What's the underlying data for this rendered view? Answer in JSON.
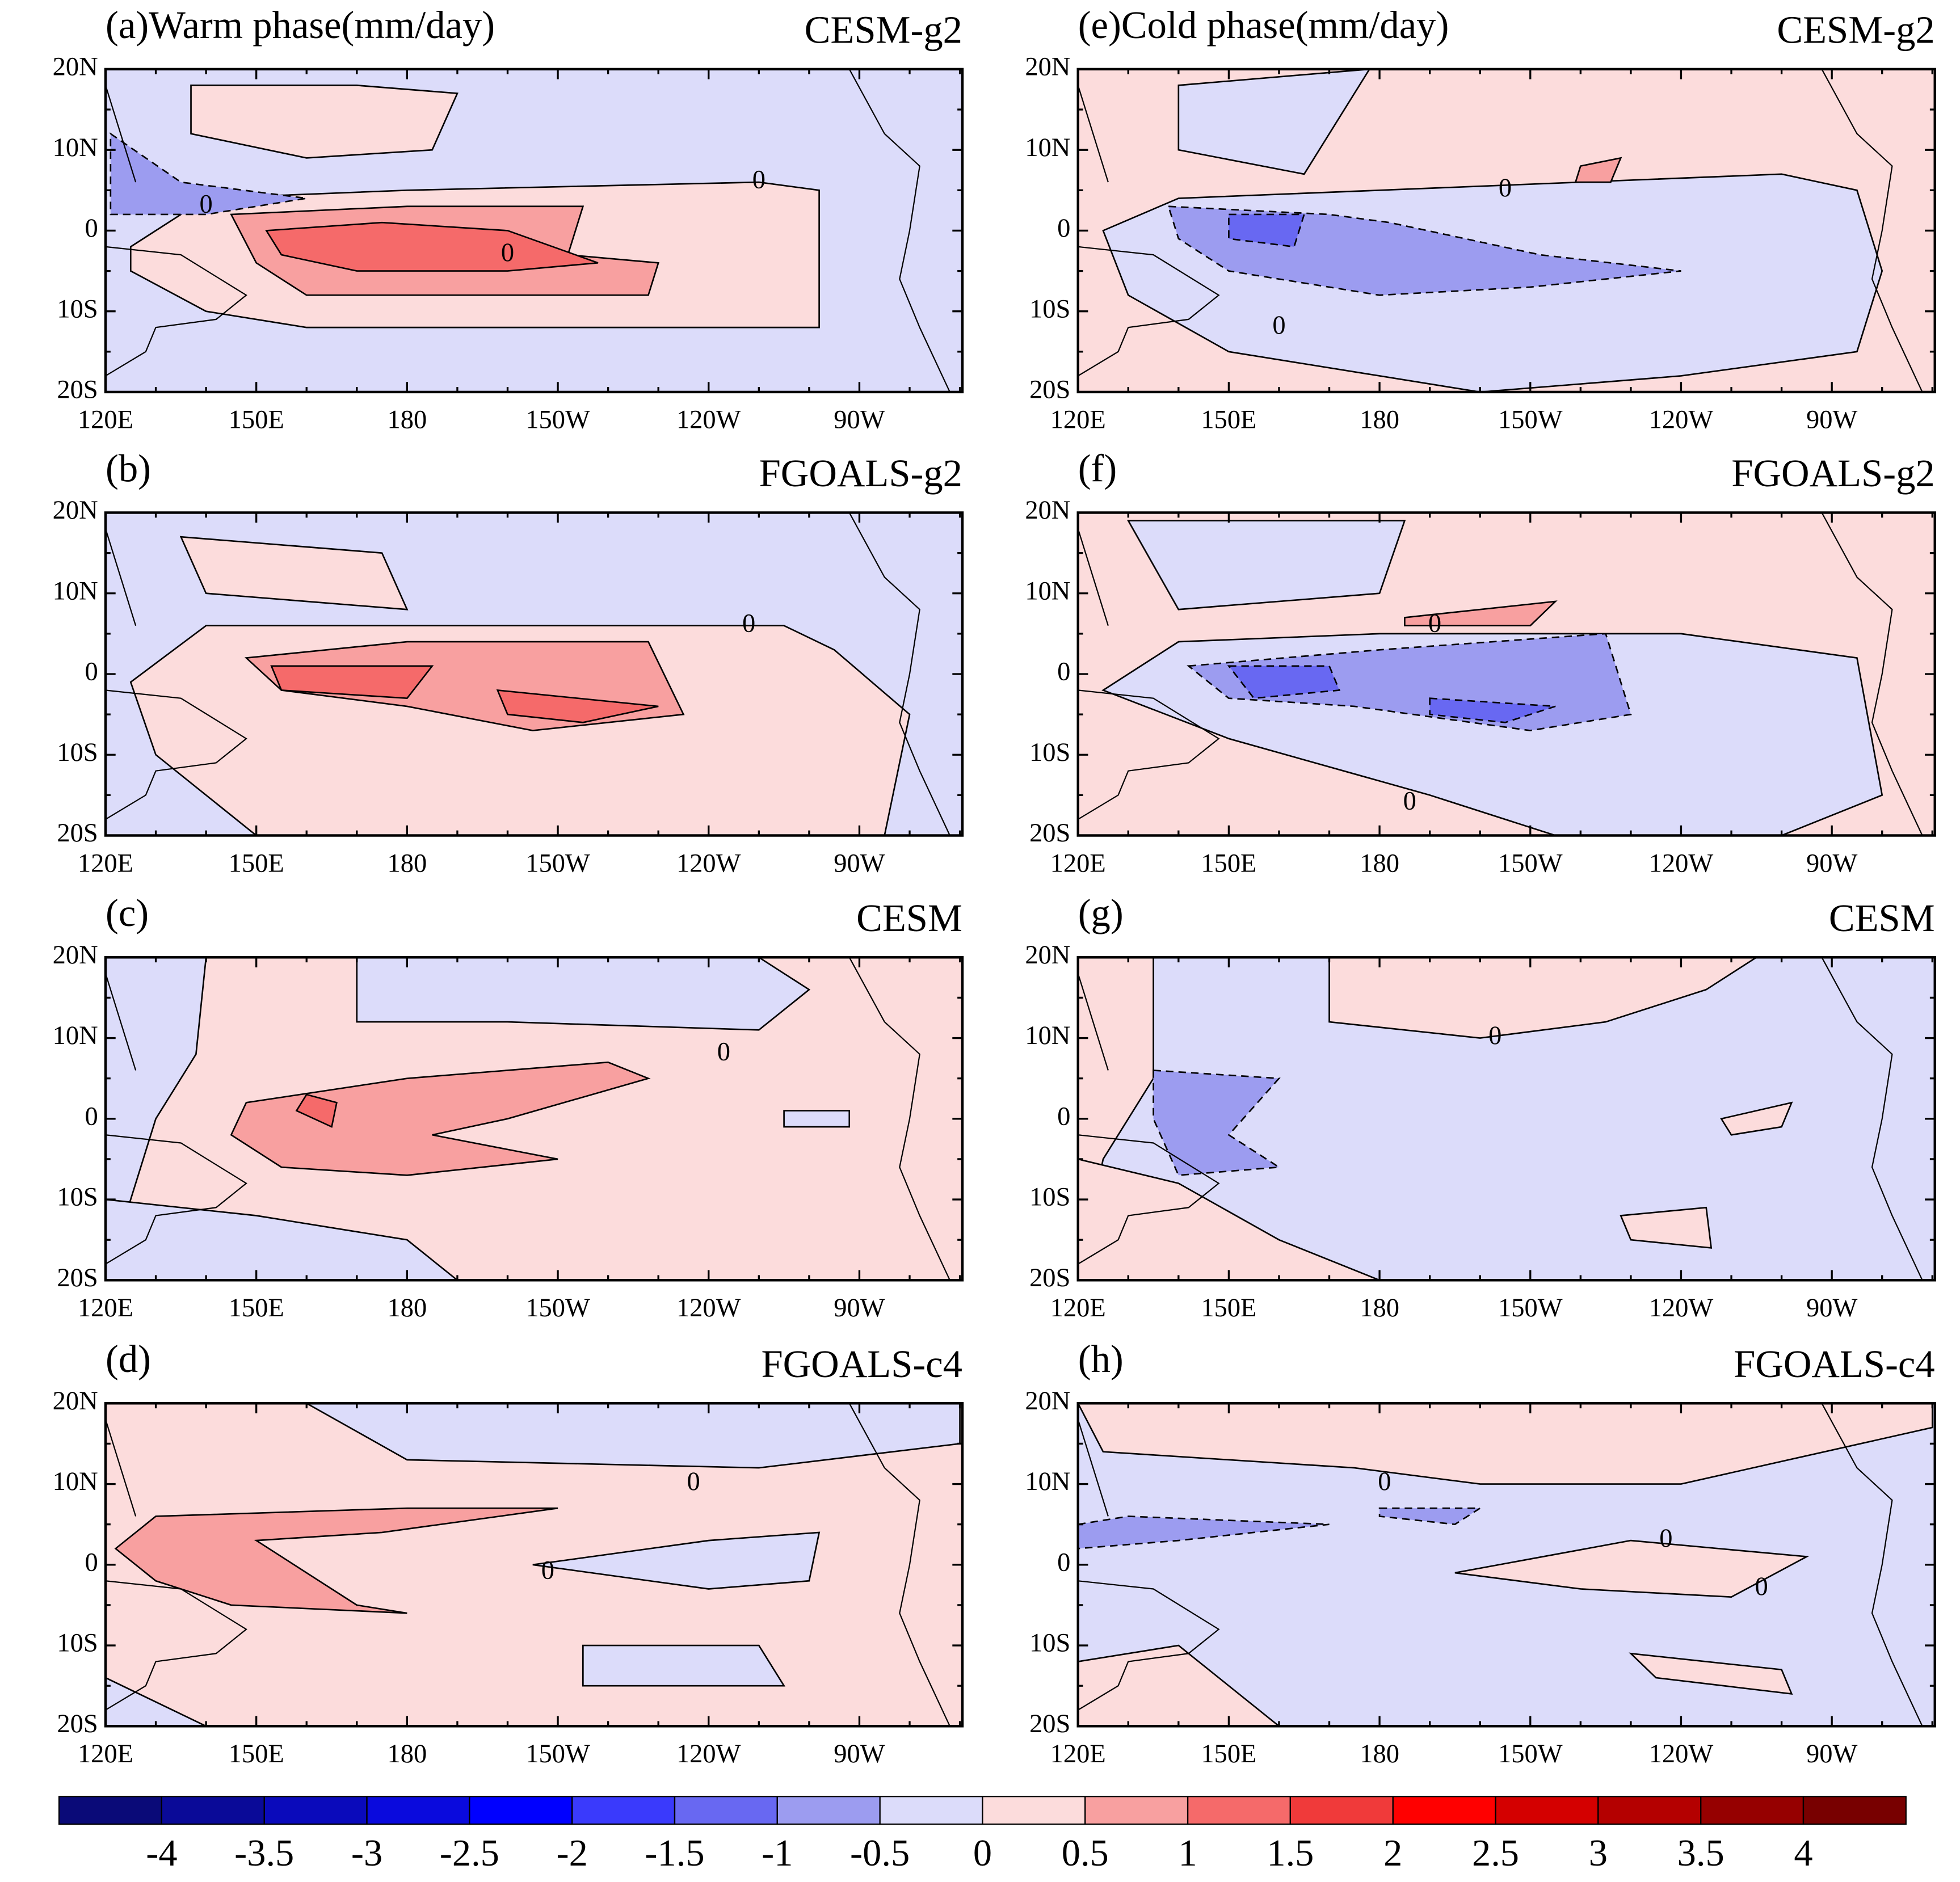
{
  "panels": [
    {
      "label": "(a)Warm phase(mm/day)",
      "model": "CESM-g2",
      "contour_labels": [
        "0",
        "0",
        "0"
      ]
    },
    {
      "label": "(b)",
      "model": "FGOALS-g2",
      "contour_labels": [
        "0"
      ]
    },
    {
      "label": "(c)",
      "model": "CESM",
      "contour_labels": [
        "0"
      ]
    },
    {
      "label": "(d)",
      "model": "FGOALS-c4",
      "contour_labels": [
        "0",
        "0"
      ]
    },
    {
      "label": "(e)Cold phase(mm/day)",
      "model": "CESM-g2",
      "contour_labels": [
        "0",
        "0"
      ]
    },
    {
      "label": "(f)",
      "model": "FGOALS-g2",
      "contour_labels": [
        "0",
        "0"
      ]
    },
    {
      "label": "(g)",
      "model": "CESM",
      "contour_labels": [
        "0"
      ]
    },
    {
      "label": "(h)",
      "model": "FGOALS-c4",
      "contour_labels": [
        "0",
        "0",
        "0"
      ]
    }
  ],
  "x_ticks": [
    "120E",
    "150E",
    "180",
    "150W",
    "120W",
    "90W"
  ],
  "y_ticks": [
    "20N",
    "10N",
    "0",
    "10S",
    "20S"
  ],
  "colorbar": {
    "levels": [
      -4,
      -3.5,
      -3,
      -2.5,
      -2,
      -1.5,
      -1,
      -0.5,
      0,
      0.5,
      1,
      1.5,
      2,
      2.5,
      3,
      3.5,
      4
    ],
    "colors": [
      "#0a0a78",
      "#0a0a98",
      "#0a0abb",
      "#0a0add",
      "#0000ff",
      "#3a3afc",
      "#6868f2",
      "#9c9cf0",
      "#dcdcfa",
      "#fcdcdc",
      "#f8a0a0",
      "#f56a6a",
      "#f03a3a",
      "#ff0000",
      "#d40000",
      "#b40000",
      "#960000",
      "#780000"
    ]
  }
}
